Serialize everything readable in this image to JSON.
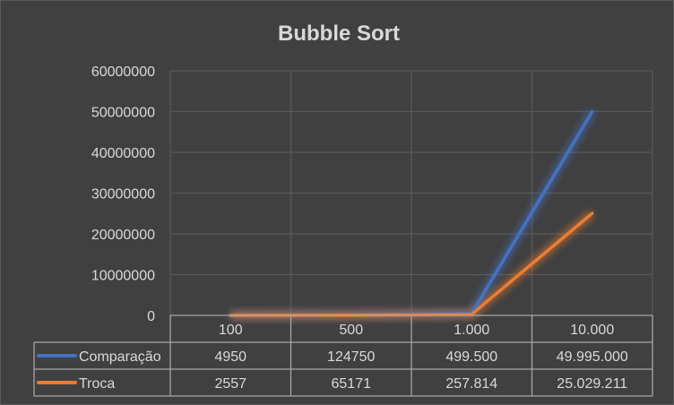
{
  "chart_data": {
    "type": "line",
    "title": "Bubble Sort",
    "categories": [
      "100",
      "500",
      "1.000",
      "10.000"
    ],
    "series": [
      {
        "name": "Comparação",
        "values": [
          4950,
          124750,
          499500,
          49995000
        ],
        "labels": [
          "4950",
          "124750",
          "499.500",
          "49.995.000"
        ],
        "color": "#4472c4"
      },
      {
        "name": "Troca",
        "values": [
          2557,
          65171,
          257814,
          25029211
        ],
        "labels": [
          "2557",
          "65171",
          "257.814",
          "25.029.211"
        ],
        "color": "#ed7d31"
      }
    ],
    "y_ticks": [
      "0",
      "10000000",
      "20000000",
      "30000000",
      "40000000",
      "50000000",
      "60000000"
    ],
    "ylim": [
      0,
      60000000
    ],
    "grid": true,
    "legend": "data-table",
    "xlabel": "",
    "ylabel": ""
  },
  "colors": {
    "background": "#404040",
    "grid": "#595959",
    "text": "#d9d9d9",
    "table_border": "#a6a6a6"
  }
}
